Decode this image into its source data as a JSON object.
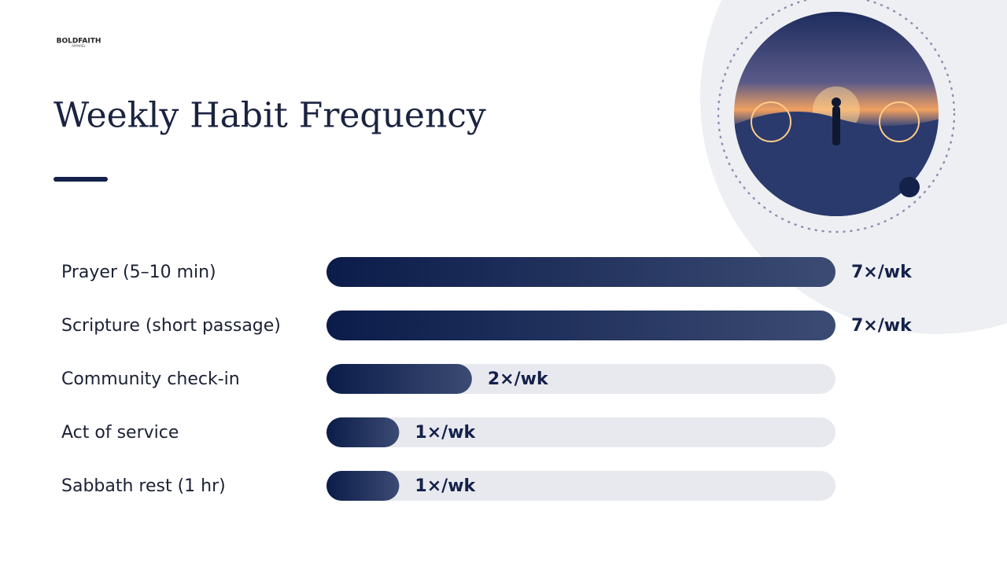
{
  "logo": {
    "name": "BOLDFAITH",
    "sub": "APPAREL"
  },
  "chart_data": {
    "type": "bar",
    "orientation": "horizontal",
    "title": "Weekly Habit Frequency",
    "categories": [
      "Prayer (5–10 min)",
      "Scripture (short passage)",
      "Community check-in",
      "Act of service",
      "Sabbath rest (1 hr)"
    ],
    "values": [
      7,
      7,
      2,
      1,
      1
    ],
    "value_labels": [
      "7×/wk",
      "7×/wk",
      "2×/wk",
      "1×/wk",
      "1×/wk"
    ],
    "color": "#0d1f4f",
    "xlim": [
      0,
      7
    ]
  }
}
